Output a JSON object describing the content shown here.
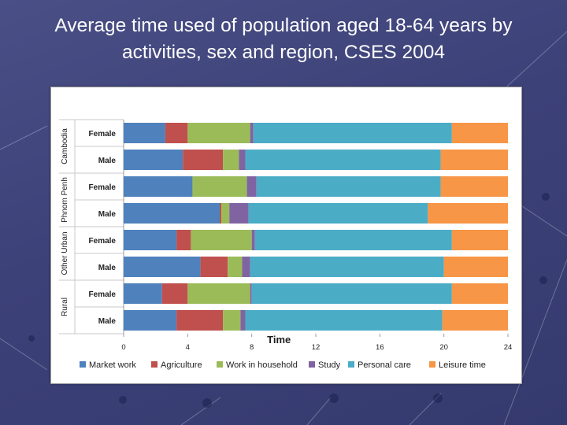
{
  "title": "Average time used of population aged 18-64 years by activities, sex and region, CSES 2004",
  "chart_data": {
    "type": "bar",
    "orientation": "horizontal",
    "stacked": true,
    "title": "Average time used of population aged 18-64 years by activities, sex and region, CSES 2004",
    "xlabel": "Time",
    "ylabel": "",
    "xlim": [
      0,
      24
    ],
    "xticks": [
      0,
      4,
      8,
      12,
      16,
      20,
      24
    ],
    "legend_position": "bottom",
    "groups": [
      {
        "label": "Cambodia",
        "categories": [
          "Female",
          "Male"
        ]
      },
      {
        "label": "Phnom Penh",
        "categories": [
          "Female",
          "Male"
        ]
      },
      {
        "label": "Other Urban",
        "categories": [
          "Female",
          "Male"
        ]
      },
      {
        "label": "Rural",
        "categories": [
          "Female",
          "Male"
        ]
      }
    ],
    "categories": [
      "Female",
      "Male",
      "Female",
      "Male",
      "Female",
      "Male",
      "Female",
      "Male"
    ],
    "series": [
      {
        "name": "Market work",
        "color": "#4f81bd",
        "values": [
          2.6,
          3.7,
          4.3,
          6.0,
          3.3,
          4.8,
          2.4,
          3.3
        ]
      },
      {
        "name": "Agriculture",
        "color": "#c0504d",
        "values": [
          1.4,
          2.5,
          0.0,
          0.1,
          0.9,
          1.7,
          1.6,
          2.9
        ]
      },
      {
        "name": "Work in household",
        "color": "#9bbb59",
        "values": [
          3.9,
          1.0,
          3.4,
          0.5,
          3.8,
          0.9,
          3.9,
          1.1
        ]
      },
      {
        "name": "Study",
        "color": "#8064a2",
        "values": [
          0.2,
          0.4,
          0.6,
          1.2,
          0.2,
          0.5,
          0.1,
          0.3
        ]
      },
      {
        "name": "Personal care",
        "color": "#4bacc6",
        "values": [
          12.4,
          12.2,
          11.5,
          11.2,
          12.3,
          12.1,
          12.5,
          12.3
        ]
      },
      {
        "name": "Leisure time",
        "color": "#f79646",
        "values": [
          3.5,
          4.2,
          4.2,
          5.0,
          3.5,
          4.0,
          3.5,
          4.1
        ]
      }
    ]
  }
}
